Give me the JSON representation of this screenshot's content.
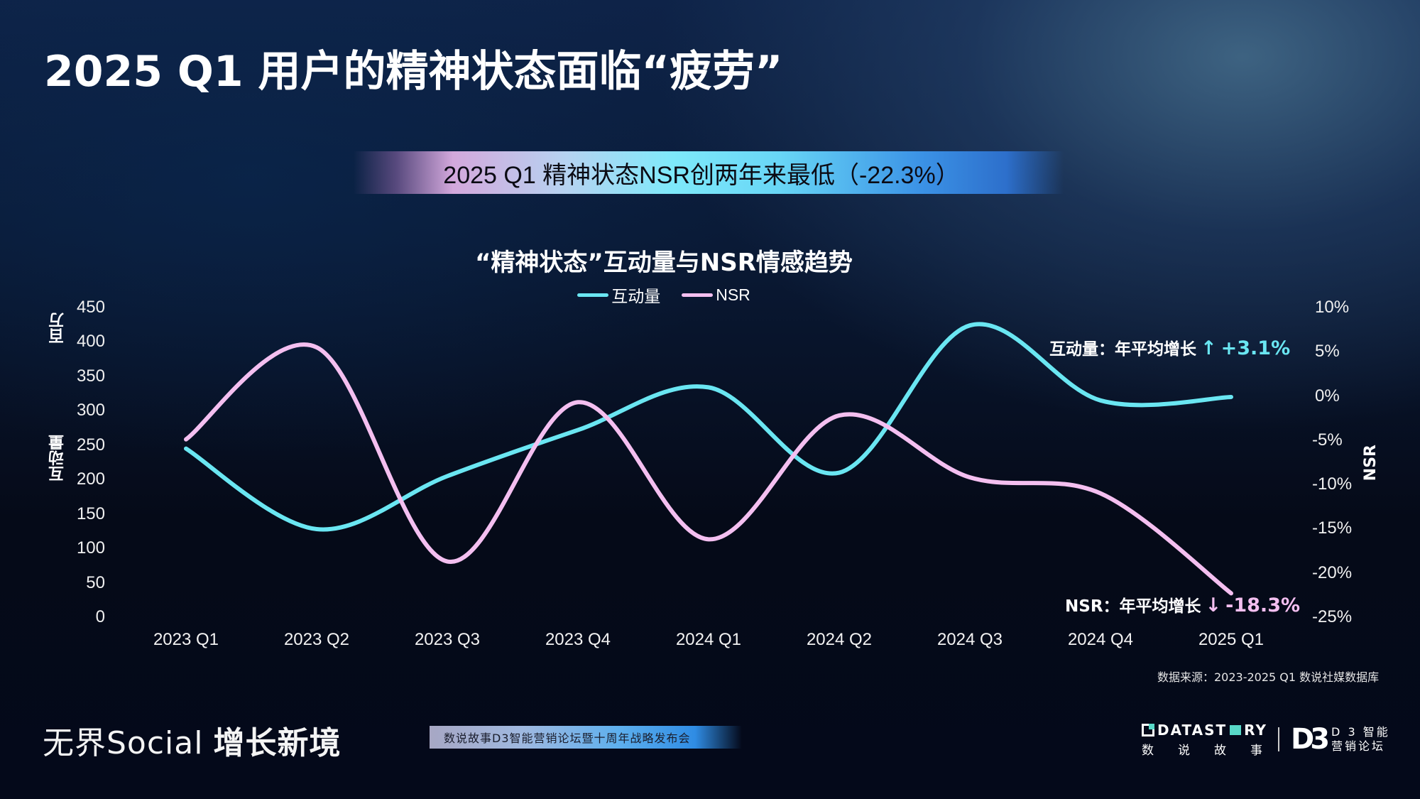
{
  "slide": {
    "title": "2025 Q1 用户的精神状态面临“疲劳”",
    "banner": "2025 Q1 精神状态NSR创两年来最低（-22.3%）",
    "source": "数据来源：2023-2025 Q1 数说社媒数据库"
  },
  "chart_data": {
    "type": "line",
    "title": "“精神状态”互动量与NSR情感趋势",
    "categories": [
      "2023 Q1",
      "2023 Q2",
      "2023 Q3",
      "2023 Q4",
      "2024 Q1",
      "2024 Q2",
      "2024 Q3",
      "2024 Q4",
      "2025 Q1"
    ],
    "series": [
      {
        "name": "互动量",
        "axis": "left",
        "unit": "百万",
        "color": "#6ae6f2",
        "values": [
          245,
          128,
          205,
          272,
          334,
          210,
          424,
          315,
          320
        ]
      },
      {
        "name": "NSR",
        "axis": "right",
        "unit": "%",
        "color": "#f4bff0",
        "values": [
          -4.9,
          5.5,
          -18.7,
          -0.7,
          -16.2,
          -2.2,
          -9.2,
          -11.0,
          -22.3
        ]
      }
    ],
    "y_left": {
      "label": "互动量",
      "unit_label": "百万",
      "ylim": [
        0,
        450
      ],
      "ticks": [
        "450",
        "400",
        "350",
        "300",
        "250",
        "200",
        "150",
        "100",
        "50",
        "0"
      ]
    },
    "y_right": {
      "label": "NSR",
      "ylim": [
        -25,
        10
      ],
      "ticks": [
        "10%",
        "5%",
        "0%",
        "-5%",
        "-10%",
        "-15%",
        "-20%",
        "-25%"
      ]
    },
    "legend": {
      "position": "top",
      "items": [
        "互动量",
        "NSR"
      ]
    },
    "grid": false,
    "annotations": [
      {
        "series": "互动量",
        "label": "互动量：年平均增长",
        "arrow": "↑",
        "value": "+3.1%",
        "color": "#6ae6f2"
      },
      {
        "series": "NSR",
        "label": "NSR：年平均增长",
        "arrow": "↓",
        "value": "-18.3%",
        "color": "#f4bff0"
      }
    ]
  },
  "footer": {
    "brand_cn1": "无界",
    "brand_en": "Social",
    "brand_cn2": "增长新境",
    "event": "数说故事D3智能营销论坛暨十周年战略发布会",
    "logo1_name_a": "DATAST",
    "logo1_name_b": "RY",
    "logo1_cn": [
      "数",
      "说",
      "故",
      "事"
    ],
    "logo2_mark": "D3",
    "logo2_line1": "D 3 智能",
    "logo2_line2": "营销论坛"
  }
}
